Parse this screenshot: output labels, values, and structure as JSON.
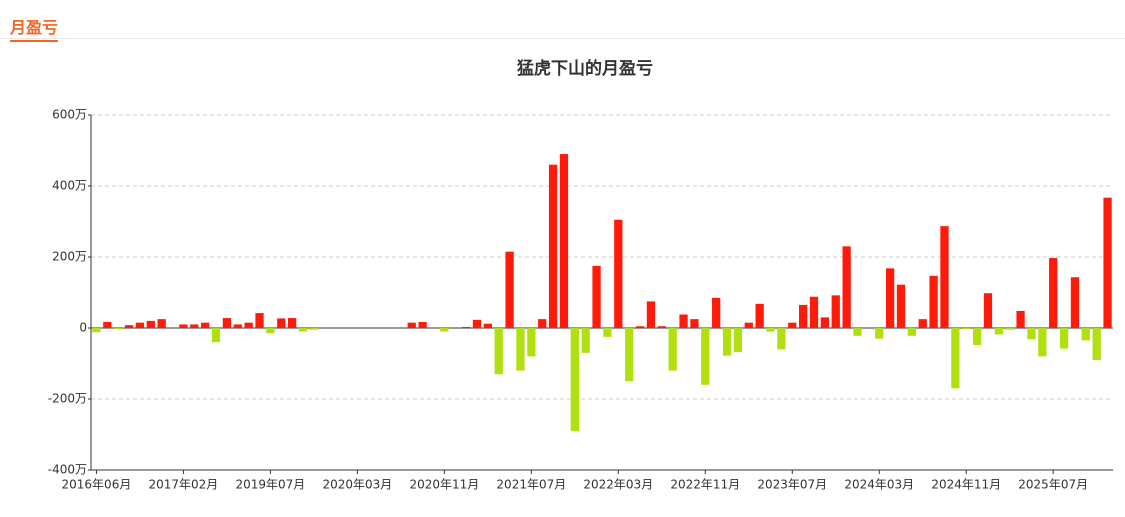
{
  "header": {
    "tab": "月盈亏"
  },
  "chart_data": {
    "type": "bar",
    "title": "猛虎下山的月盈亏",
    "categories": [
      "2016年06月",
      null,
      null,
      null,
      null,
      null,
      null,
      null,
      "2017年02月",
      null,
      null,
      null,
      null,
      null,
      null,
      null,
      "2019年07月",
      null,
      null,
      null,
      null,
      null,
      null,
      null,
      "2020年03月",
      null,
      null,
      null,
      null,
      null,
      null,
      null,
      "2020年11月",
      null,
      null,
      null,
      null,
      null,
      null,
      null,
      "2021年07月",
      null,
      null,
      null,
      null,
      null,
      null,
      null,
      "2022年03月",
      null,
      null,
      null,
      null,
      null,
      null,
      null,
      "2022年11月",
      null,
      null,
      null,
      null,
      null,
      null,
      null,
      "2023年07月",
      null,
      null,
      null,
      null,
      null,
      null,
      null,
      "2024年03月",
      null,
      null,
      null,
      null,
      null,
      null,
      null,
      "2024年11月",
      null,
      null,
      null,
      null,
      null,
      null,
      null,
      "2025年07月",
      null,
      null,
      null,
      null,
      null
    ],
    "values": [
      -12,
      17,
      -3,
      8,
      15,
      20,
      25,
      0,
      10,
      10,
      15,
      -40,
      28,
      10,
      15,
      42,
      -15,
      27,
      28,
      -10,
      -5,
      0,
      0,
      0,
      0,
      0,
      0,
      0,
      0,
      15,
      17,
      0,
      -10,
      0,
      3,
      23,
      12,
      -130,
      215,
      -120,
      -80,
      25,
      460,
      490,
      -290,
      -70,
      175,
      -25,
      305,
      -150,
      5,
      75,
      5,
      -120,
      38,
      25,
      -160,
      85,
      -78,
      -68,
      15,
      68,
      -10,
      -60,
      15,
      65,
      88,
      30,
      92,
      230,
      -22,
      0,
      -30,
      168,
      122,
      -22,
      25,
      147,
      287,
      -170,
      -3,
      -48,
      98,
      -18,
      -5,
      48,
      -32,
      -80,
      197,
      -58,
      143,
      -35,
      -90,
      367
    ],
    "positive_color": "#ff1a0a",
    "negative_color": "#b0e012",
    "ylim": [
      -400,
      600
    ],
    "yticks": [
      {
        "value": -400,
        "label": "-400万"
      },
      {
        "value": -200,
        "label": "-200万"
      },
      {
        "value": 0,
        "label": "0"
      },
      {
        "value": 200,
        "label": "200万"
      },
      {
        "value": 400,
        "label": "400万"
      },
      {
        "value": 600,
        "label": "600万"
      }
    ],
    "grid": true
  }
}
